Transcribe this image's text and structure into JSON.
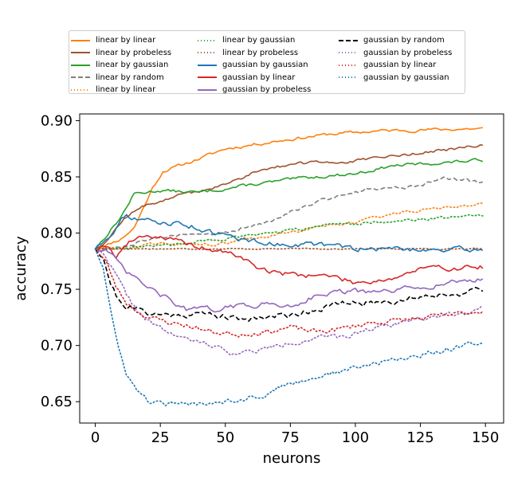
{
  "chart_data": {
    "type": "line",
    "title": "",
    "xlabel": "neurons",
    "ylabel": "accuracy",
    "xlim": [
      -6,
      157
    ],
    "ylim": [
      0.631,
      0.906
    ],
    "xticks": [
      0,
      25,
      50,
      75,
      100,
      125,
      150
    ],
    "yticks": [
      0.65,
      0.7,
      0.75,
      0.8,
      0.85,
      0.9
    ],
    "ytick_labels": [
      "0.65",
      "0.70",
      "0.75",
      "0.80",
      "0.85",
      "0.90"
    ],
    "x_range": [
      0,
      149
    ],
    "legend": {
      "placement": "top, outside plot",
      "columns": [
        [
          "linear by linear",
          "linear by probeless",
          "linear by gaussian",
          "linear by random",
          "linear by linear"
        ],
        [
          "linear by gaussian",
          "linear by probeless",
          "gaussian by gaussian",
          "gaussian by linear",
          "gaussian by probeless"
        ],
        [
          "gaussian by random",
          "gaussian by probeless",
          "gaussian by linear",
          "gaussian by gaussian"
        ]
      ]
    },
    "series": [
      {
        "name": "linear by linear",
        "color": "#ff7f0e",
        "style": "solid",
        "seed": 11,
        "noise": 0.0012,
        "anchors": [
          [
            0,
            0.786
          ],
          [
            5,
            0.79
          ],
          [
            10,
            0.795
          ],
          [
            15,
            0.805
          ],
          [
            18,
            0.82
          ],
          [
            22,
            0.84
          ],
          [
            26,
            0.855
          ],
          [
            35,
            0.862
          ],
          [
            50,
            0.875
          ],
          [
            70,
            0.882
          ],
          [
            90,
            0.888
          ],
          [
            110,
            0.891
          ],
          [
            130,
            0.892
          ],
          [
            149,
            0.893
          ]
        ]
      },
      {
        "name": "linear by probeless",
        "color": "#a0522d",
        "style": "solid",
        "seed": 12,
        "noise": 0.0012,
        "anchors": [
          [
            0,
            0.786
          ],
          [
            5,
            0.795
          ],
          [
            10,
            0.81
          ],
          [
            15,
            0.82
          ],
          [
            20,
            0.825
          ],
          [
            30,
            0.832
          ],
          [
            50,
            0.843
          ],
          [
            65,
            0.858
          ],
          [
            80,
            0.862
          ],
          [
            100,
            0.864
          ],
          [
            120,
            0.87
          ],
          [
            135,
            0.874
          ],
          [
            149,
            0.878
          ]
        ]
      },
      {
        "name": "linear by gaussian",
        "color": "#2ca02c",
        "style": "solid",
        "seed": 13,
        "noise": 0.0012,
        "anchors": [
          [
            0,
            0.786
          ],
          [
            5,
            0.8
          ],
          [
            10,
            0.815
          ],
          [
            15,
            0.835
          ],
          [
            25,
            0.838
          ],
          [
            40,
            0.836
          ],
          [
            60,
            0.843
          ],
          [
            80,
            0.849
          ],
          [
            100,
            0.853
          ],
          [
            115,
            0.86
          ],
          [
            130,
            0.862
          ],
          [
            149,
            0.865
          ]
        ]
      },
      {
        "name": "linear by random",
        "color": "#7f7f7f",
        "style": "dashed",
        "seed": 14,
        "noise": 0.0015,
        "anchors": [
          [
            0,
            0.786
          ],
          [
            10,
            0.788
          ],
          [
            20,
            0.795
          ],
          [
            35,
            0.798
          ],
          [
            50,
            0.8
          ],
          [
            65,
            0.81
          ],
          [
            80,
            0.824
          ],
          [
            95,
            0.834
          ],
          [
            105,
            0.84
          ],
          [
            120,
            0.84
          ],
          [
            135,
            0.849
          ],
          [
            149,
            0.845
          ]
        ]
      },
      {
        "name": "linear by linear",
        "color": "#ff7f0e",
        "style": "dotted",
        "seed": 15,
        "noise": 0.0012,
        "anchors": [
          [
            0,
            0.786
          ],
          [
            10,
            0.787
          ],
          [
            25,
            0.79
          ],
          [
            45,
            0.79
          ],
          [
            60,
            0.795
          ],
          [
            80,
            0.803
          ],
          [
            100,
            0.81
          ],
          [
            115,
            0.818
          ],
          [
            135,
            0.822
          ],
          [
            149,
            0.826
          ]
        ]
      },
      {
        "name": "linear by gaussian",
        "color": "#2ca02c",
        "style": "dotted",
        "seed": 16,
        "noise": 0.0012,
        "anchors": [
          [
            0,
            0.786
          ],
          [
            10,
            0.787
          ],
          [
            30,
            0.79
          ],
          [
            50,
            0.795
          ],
          [
            70,
            0.8
          ],
          [
            90,
            0.808
          ],
          [
            110,
            0.81
          ],
          [
            130,
            0.813
          ],
          [
            149,
            0.817
          ]
        ]
      },
      {
        "name": "linear by probeless",
        "color": "#a0522d",
        "style": "dotted",
        "seed": 17,
        "noise": 0.0004,
        "anchors": [
          [
            0,
            0.786
          ],
          [
            20,
            0.786
          ],
          [
            60,
            0.786
          ],
          [
            100,
            0.786
          ],
          [
            149,
            0.786
          ]
        ]
      },
      {
        "name": "gaussian by gaussian",
        "color": "#1f77b4",
        "style": "solid",
        "seed": 18,
        "noise": 0.002,
        "anchors": [
          [
            0,
            0.786
          ],
          [
            4,
            0.795
          ],
          [
            8,
            0.805
          ],
          [
            12,
            0.818
          ],
          [
            16,
            0.812
          ],
          [
            22,
            0.81
          ],
          [
            35,
            0.808
          ],
          [
            45,
            0.8
          ],
          [
            55,
            0.795
          ],
          [
            70,
            0.79
          ],
          [
            85,
            0.79
          ],
          [
            100,
            0.786
          ],
          [
            120,
            0.786
          ],
          [
            149,
            0.785
          ]
        ]
      },
      {
        "name": "gaussian by linear",
        "color": "#d62728",
        "style": "solid",
        "seed": 19,
        "noise": 0.002,
        "anchors": [
          [
            0,
            0.786
          ],
          [
            4,
            0.79
          ],
          [
            8,
            0.78
          ],
          [
            12,
            0.79
          ],
          [
            18,
            0.798
          ],
          [
            25,
            0.797
          ],
          [
            35,
            0.79
          ],
          [
            45,
            0.785
          ],
          [
            55,
            0.78
          ],
          [
            62,
            0.77
          ],
          [
            70,
            0.764
          ],
          [
            80,
            0.763
          ],
          [
            90,
            0.762
          ],
          [
            100,
            0.756
          ],
          [
            115,
            0.76
          ],
          [
            125,
            0.768
          ],
          [
            149,
            0.77
          ]
        ]
      },
      {
        "name": "gaussian by probeless",
        "color": "#9467bd",
        "style": "solid",
        "seed": 20,
        "noise": 0.002,
        "anchors": [
          [
            0,
            0.786
          ],
          [
            4,
            0.785
          ],
          [
            8,
            0.775
          ],
          [
            12,
            0.765
          ],
          [
            18,
            0.755
          ],
          [
            25,
            0.745
          ],
          [
            35,
            0.732
          ],
          [
            45,
            0.732
          ],
          [
            55,
            0.735
          ],
          [
            65,
            0.737
          ],
          [
            75,
            0.735
          ],
          [
            85,
            0.745
          ],
          [
            95,
            0.748
          ],
          [
            110,
            0.747
          ],
          [
            125,
            0.752
          ],
          [
            140,
            0.757
          ],
          [
            149,
            0.759
          ]
        ]
      },
      {
        "name": "gaussian by random",
        "color": "#000000",
        "style": "dashed",
        "seed": 21,
        "noise": 0.0025,
        "anchors": [
          [
            0,
            0.786
          ],
          [
            3,
            0.78
          ],
          [
            6,
            0.755
          ],
          [
            9,
            0.74
          ],
          [
            12,
            0.735
          ],
          [
            16,
            0.732
          ],
          [
            25,
            0.727
          ],
          [
            35,
            0.728
          ],
          [
            45,
            0.728
          ],
          [
            55,
            0.723
          ],
          [
            65,
            0.726
          ],
          [
            75,
            0.727
          ],
          [
            85,
            0.733
          ],
          [
            95,
            0.737
          ],
          [
            105,
            0.738
          ],
          [
            115,
            0.74
          ],
          [
            125,
            0.744
          ],
          [
            140,
            0.747
          ],
          [
            149,
            0.748
          ]
        ]
      },
      {
        "name": "gaussian by probeless",
        "color": "#9467bd",
        "style": "dotted",
        "seed": 22,
        "noise": 0.002,
        "anchors": [
          [
            0,
            0.786
          ],
          [
            4,
            0.78
          ],
          [
            8,
            0.762
          ],
          [
            12,
            0.745
          ],
          [
            18,
            0.725
          ],
          [
            25,
            0.715
          ],
          [
            35,
            0.705
          ],
          [
            45,
            0.7
          ],
          [
            55,
            0.692
          ],
          [
            65,
            0.697
          ],
          [
            75,
            0.702
          ],
          [
            85,
            0.708
          ],
          [
            95,
            0.706
          ],
          [
            105,
            0.715
          ],
          [
            115,
            0.72
          ],
          [
            125,
            0.724
          ],
          [
            140,
            0.729
          ],
          [
            149,
            0.733
          ]
        ]
      },
      {
        "name": "gaussian by linear",
        "color": "#d62728",
        "style": "dotted",
        "seed": 23,
        "noise": 0.002,
        "anchors": [
          [
            0,
            0.786
          ],
          [
            4,
            0.775
          ],
          [
            8,
            0.752
          ],
          [
            12,
            0.738
          ],
          [
            18,
            0.728
          ],
          [
            25,
            0.722
          ],
          [
            35,
            0.718
          ],
          [
            45,
            0.712
          ],
          [
            55,
            0.71
          ],
          [
            65,
            0.712
          ],
          [
            75,
            0.716
          ],
          [
            85,
            0.712
          ],
          [
            95,
            0.715
          ],
          [
            105,
            0.72
          ],
          [
            115,
            0.722
          ],
          [
            125,
            0.724
          ],
          [
            140,
            0.728
          ],
          [
            149,
            0.731
          ]
        ]
      },
      {
        "name": "gaussian by gaussian",
        "color": "#1f77b4",
        "style": "dotted",
        "seed": 24,
        "noise": 0.002,
        "anchors": [
          [
            0,
            0.786
          ],
          [
            3,
            0.77
          ],
          [
            6,
            0.73
          ],
          [
            9,
            0.695
          ],
          [
            12,
            0.675
          ],
          [
            16,
            0.66
          ],
          [
            20,
            0.651
          ],
          [
            25,
            0.648
          ],
          [
            35,
            0.647
          ],
          [
            45,
            0.65
          ],
          [
            55,
            0.652
          ],
          [
            65,
            0.656
          ],
          [
            72,
            0.664
          ],
          [
            85,
            0.672
          ],
          [
            100,
            0.68
          ],
          [
            115,
            0.687
          ],
          [
            130,
            0.694
          ],
          [
            140,
            0.699
          ],
          [
            149,
            0.704
          ]
        ]
      }
    ]
  }
}
